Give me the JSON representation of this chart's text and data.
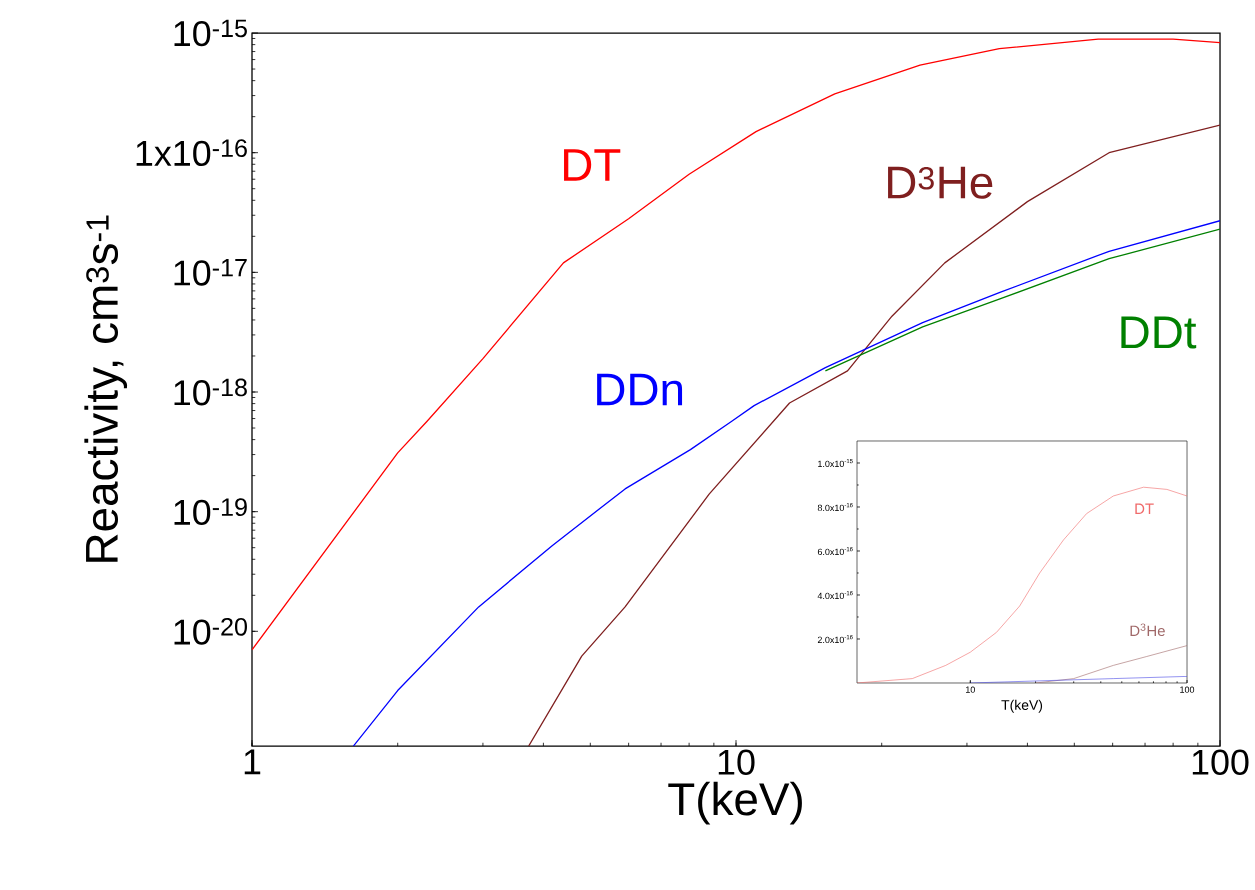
{
  "chart_data": [
    {
      "type": "line",
      "log": "xy",
      "xlabel": "T(keV)",
      "ylabel": "Reactivity, cm$^{3}$s$^{-1}$",
      "xlim": [
        1,
        100
      ],
      "ylim": [
        1.1e-21,
        1e-15
      ],
      "xticks": [
        1,
        10,
        100
      ],
      "yticks": [
        {
          "value": 1e-20,
          "label": "10$^{-20}$"
        },
        {
          "value": 1e-19,
          "label": "10$^{-19}$"
        },
        {
          "value": 1e-18,
          "label": "10$^{-18}$"
        },
        {
          "value": 1e-17,
          "label": "10$^{-17}$"
        },
        {
          "value": 1e-16,
          "label": "1x10$^{-16}$"
        },
        {
          "value": 1e-15,
          "label": "10$^{-15}$"
        }
      ],
      "series": [
        {
          "name": "DT",
          "color": "#ff0000",
          "x": [
            1,
            2,
            2.3,
            3,
            4.4,
            6,
            8,
            11,
            16,
            24,
            35,
            56,
            80,
            100
          ],
          "values": [
            7e-21,
            3.1e-19,
            5.7e-19,
            1.9e-18,
            1.2e-17,
            2.8e-17,
            6.6e-17,
            1.5e-16,
            3.1e-16,
            5.4e-16,
            7.4e-16,
            8.9e-16,
            8.9e-16,
            8.3e-16
          ]
        },
        {
          "name": "D$^{3}$He",
          "color": "#7f1f1f",
          "x": [
            3.73,
            4.8,
            5.9,
            8.8,
            12.9,
            17,
            21,
            27,
            40,
            59,
            100
          ],
          "values": [
            1.1e-21,
            6.2e-21,
            1.6e-20,
            1.4e-19,
            8.1e-19,
            1.5e-18,
            4.3e-18,
            1.2e-17,
            3.9e-17,
            1e-16,
            1.7e-16
          ]
        },
        {
          "name": "DDt",
          "color": "#008000",
          "x": [
            15.3,
            24.3,
            35.1,
            59,
            100
          ],
          "values": [
            1.5e-18,
            3.5e-18,
            6e-18,
            1.3e-17,
            2.3e-17
          ]
        },
        {
          "name": "DDn",
          "color": "#0000ff",
          "x": [
            1.62,
            2,
            2.94,
            4.17,
            5.9,
            8.05,
            9.8,
            10.9,
            15.3,
            24.3,
            35.1,
            59,
            100
          ],
          "values": [
            1.1e-21,
            3.2e-21,
            1.6e-20,
            5.2e-20,
            1.55e-19,
            3.3e-19,
            5.7e-19,
            7.7e-19,
            1.6e-18,
            3.8e-18,
            6.8e-18,
            1.5e-17,
            2.7e-17
          ]
        }
      ]
    },
    {
      "type": "line",
      "log": "x",
      "xlabel": "T(keV)",
      "xlim": [
        3,
        100
      ],
      "ylim": [
        0,
        1.1e-15
      ],
      "xticks": [
        10,
        100
      ],
      "yticks": [
        {
          "value": 2e-16,
          "label": "2.0x10$^{-16}$"
        },
        {
          "value": 4e-16,
          "label": "4.0x10$^{-16}$"
        },
        {
          "value": 6e-16,
          "label": "6.0x10$^{-16}$"
        },
        {
          "value": 8e-16,
          "label": "8.0x10$^{-16}$"
        },
        {
          "value": 1e-15,
          "label": "1.0x10$^{-15}$"
        }
      ],
      "series": [
        {
          "name": "DT",
          "color": "#f06a6a",
          "x": [
            3,
            5.4,
            7.7,
            10,
            13.2,
            16.9,
            20.9,
            26.9,
            34.4,
            45.7,
            63,
            80.7,
            100
          ],
          "values": [
            0,
            2e-17,
            8e-17,
            1.4e-16,
            2.3e-16,
            3.5e-16,
            5e-16,
            6.5e-16,
            7.7e-16,
            8.5e-16,
            8.9e-16,
            8.8e-16,
            8.5e-16
          ]
        },
        {
          "name": "D$^{3}$He",
          "color": "#a06868",
          "x": [
            20,
            30,
            45.7,
            64.9,
            100
          ],
          "values": [
            0,
            2e-17,
            8e-17,
            1.2e-16,
            1.7e-16
          ]
        },
        {
          "color": "#4a4ae6",
          "x": [
            10,
            45.7,
            100
          ],
          "values": [
            0,
            2e-17,
            3e-17
          ]
        }
      ]
    }
  ]
}
